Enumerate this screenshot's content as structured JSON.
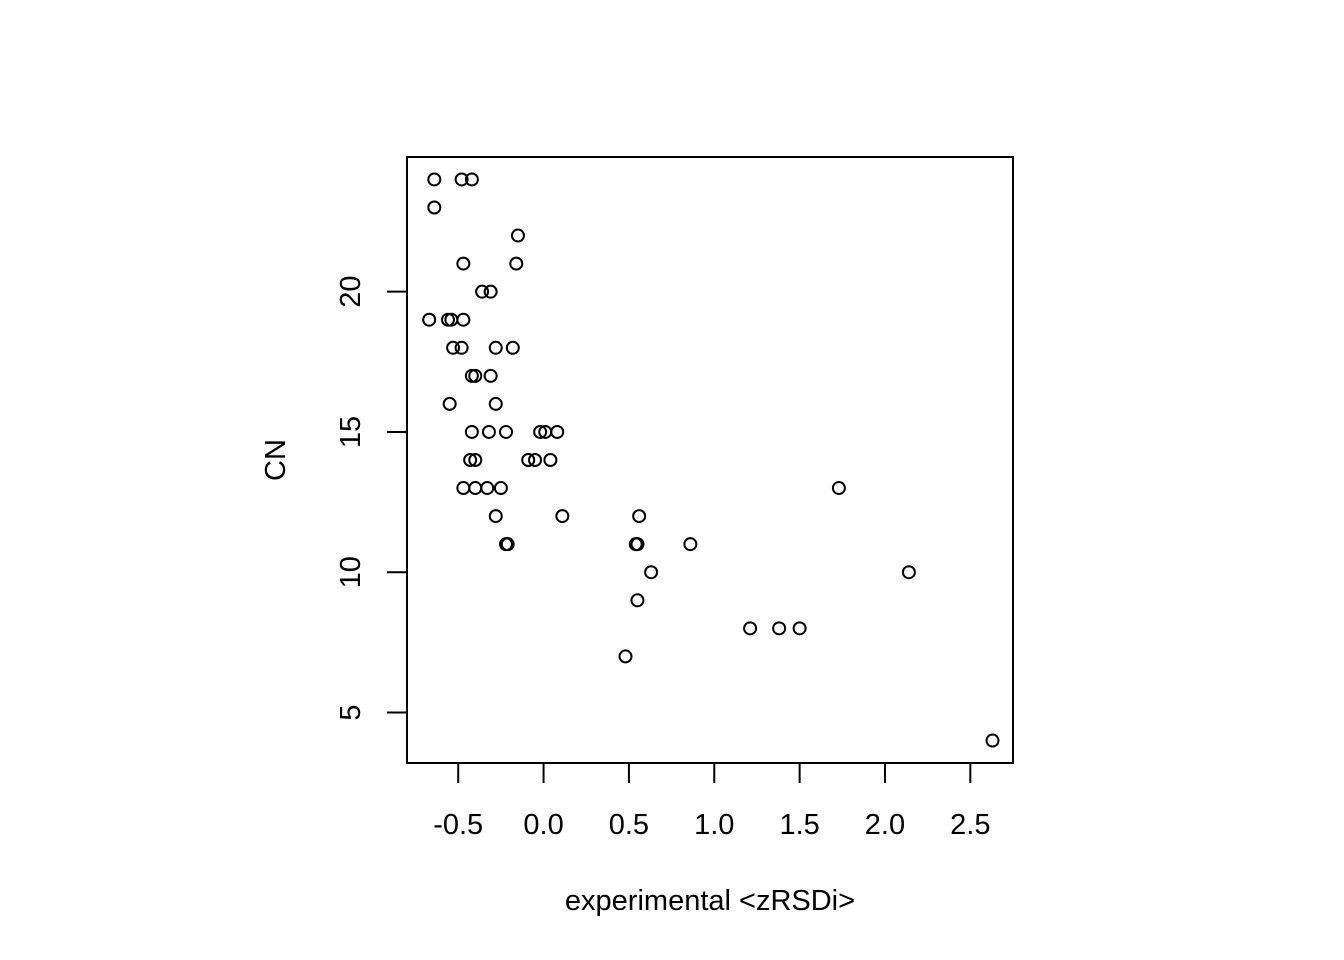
{
  "chart_data": {
    "type": "scatter",
    "title": "",
    "xlabel": "experimental <zRSDi>",
    "ylabel": "CN",
    "xlim": [
      -0.8,
      2.75
    ],
    "ylim": [
      3.2,
      24.8
    ],
    "x_ticks": [
      -0.5,
      0.0,
      0.5,
      1.0,
      1.5,
      2.0,
      2.5
    ],
    "x_tick_labels": [
      "-0.5",
      "0.0",
      "0.5",
      "1.0",
      "1.5",
      "2.0",
      "2.5"
    ],
    "y_ticks": [
      5,
      10,
      15,
      20
    ],
    "y_tick_labels": [
      "5",
      "10",
      "15",
      "20"
    ],
    "grid": false,
    "marker": "open-circle",
    "colors": {
      "points": "#000000",
      "axes": "#000000",
      "background": "#ffffff"
    },
    "points": [
      {
        "x": -0.64,
        "y": 24
      },
      {
        "x": -0.48,
        "y": 24
      },
      {
        "x": -0.42,
        "y": 24
      },
      {
        "x": -0.64,
        "y": 23
      },
      {
        "x": -0.15,
        "y": 22
      },
      {
        "x": -0.47,
        "y": 21
      },
      {
        "x": -0.16,
        "y": 21
      },
      {
        "x": -0.36,
        "y": 20
      },
      {
        "x": -0.31,
        "y": 20
      },
      {
        "x": -0.67,
        "y": 19
      },
      {
        "x": -0.56,
        "y": 19
      },
      {
        "x": -0.54,
        "y": 19
      },
      {
        "x": -0.47,
        "y": 19
      },
      {
        "x": -0.53,
        "y": 18
      },
      {
        "x": -0.48,
        "y": 18
      },
      {
        "x": -0.28,
        "y": 18
      },
      {
        "x": -0.18,
        "y": 18
      },
      {
        "x": -0.42,
        "y": 17
      },
      {
        "x": -0.4,
        "y": 17
      },
      {
        "x": -0.31,
        "y": 17
      },
      {
        "x": -0.55,
        "y": 16
      },
      {
        "x": -0.28,
        "y": 16
      },
      {
        "x": -0.42,
        "y": 15
      },
      {
        "x": -0.32,
        "y": 15
      },
      {
        "x": -0.22,
        "y": 15
      },
      {
        "x": -0.02,
        "y": 15
      },
      {
        "x": 0.01,
        "y": 15
      },
      {
        "x": 0.08,
        "y": 15
      },
      {
        "x": -0.43,
        "y": 14
      },
      {
        "x": -0.4,
        "y": 14
      },
      {
        "x": -0.09,
        "y": 14
      },
      {
        "x": -0.05,
        "y": 14
      },
      {
        "x": 0.04,
        "y": 14
      },
      {
        "x": -0.47,
        "y": 13
      },
      {
        "x": -0.4,
        "y": 13
      },
      {
        "x": -0.33,
        "y": 13
      },
      {
        "x": -0.25,
        "y": 13
      },
      {
        "x": 1.73,
        "y": 13
      },
      {
        "x": -0.28,
        "y": 12
      },
      {
        "x": 0.11,
        "y": 12
      },
      {
        "x": 0.56,
        "y": 12
      },
      {
        "x": -0.22,
        "y": 11
      },
      {
        "x": -0.21,
        "y": 11
      },
      {
        "x": 0.54,
        "y": 11
      },
      {
        "x": 0.55,
        "y": 11
      },
      {
        "x": 0.86,
        "y": 11
      },
      {
        "x": 0.63,
        "y": 10
      },
      {
        "x": 2.14,
        "y": 10
      },
      {
        "x": 0.55,
        "y": 9
      },
      {
        "x": 1.21,
        "y": 8
      },
      {
        "x": 1.38,
        "y": 8
      },
      {
        "x": 1.5,
        "y": 8
      },
      {
        "x": 0.48,
        "y": 7
      },
      {
        "x": 2.63,
        "y": 4
      }
    ]
  }
}
